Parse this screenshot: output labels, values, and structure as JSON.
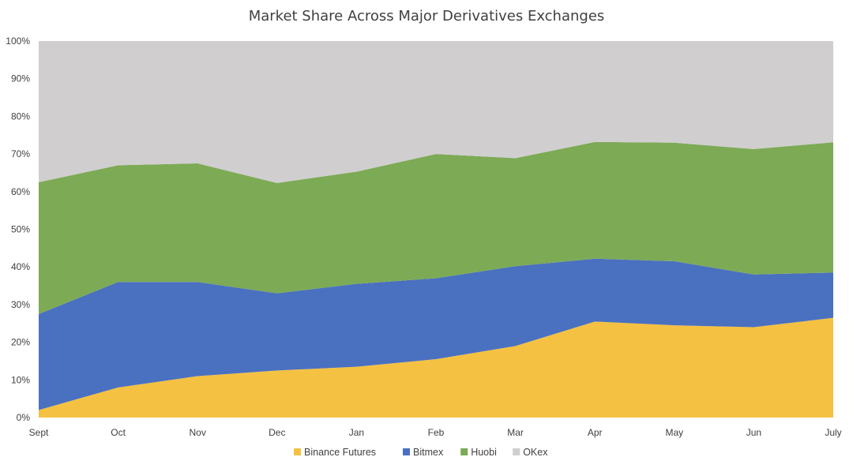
{
  "chart_data": {
    "type": "area",
    "stacked": "percent",
    "title": "Market Share Across Major Derivatives Exchanges",
    "xlabel": "",
    "ylabel": "",
    "ylim": [
      0,
      100
    ],
    "y_ticks": [
      "0%",
      "10%",
      "20%",
      "30%",
      "40%",
      "50%",
      "60%",
      "70%",
      "80%",
      "90%",
      "100%"
    ],
    "categories": [
      "Sept",
      "Oct",
      "Nov",
      "Dec",
      "Jan",
      "Feb",
      "Mar",
      "Apr",
      "May",
      "Jun",
      "July"
    ],
    "legend_position": "bottom",
    "series": [
      {
        "name": "Binance Futures",
        "color": "#F4C142",
        "values": [
          2,
          8,
          11,
          12.5,
          13.5,
          15.5,
          19,
          25.5,
          24.5,
          24,
          26.5
        ]
      },
      {
        "name": "Bitmex",
        "color": "#4A70C0",
        "values": [
          25.5,
          28,
          25,
          20.5,
          22,
          21.5,
          21.2,
          16.7,
          17,
          14,
          12
        ]
      },
      {
        "name": "Huobi",
        "color": "#7DAA55",
        "values": [
          35,
          31,
          31.5,
          29.3,
          29.8,
          33,
          28.7,
          31,
          31.5,
          33.3,
          34.6
        ]
      },
      {
        "name": "OKex",
        "color": "#D0CECF",
        "values": [
          37.5,
          33,
          32.5,
          37.7,
          34.7,
          30,
          31.1,
          26.8,
          27,
          28.7,
          26.9
        ]
      }
    ]
  }
}
